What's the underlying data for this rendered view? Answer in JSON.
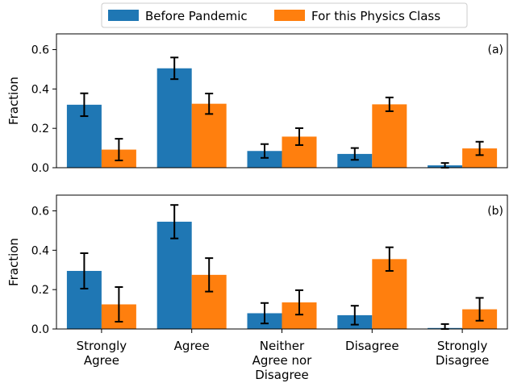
{
  "chart_data": {
    "type": "bar",
    "legend": {
      "placement": "top-center",
      "entries": [
        "Before Pandemic",
        "For this Physics Class"
      ]
    },
    "categories": [
      [
        "Strongly",
        "Agree"
      ],
      [
        "Agree"
      ],
      [
        "Neither",
        "Agree nor",
        "Disagree"
      ],
      [
        "Disagree"
      ],
      [
        "Strongly",
        "Disagree"
      ]
    ],
    "colors": [
      "#1f77b4",
      "#ff7f0e"
    ],
    "panels": [
      {
        "label": "(a)",
        "ylabel": "Fraction",
        "ylim": [
          0,
          0.68
        ],
        "yticks": [
          "0.0",
          "0.2",
          "0.4",
          "0.6"
        ],
        "series": [
          {
            "name": "Before Pandemic",
            "values": [
              0.32,
              0.505,
              0.085,
              0.07,
              0.012
            ],
            "errors": [
              0.058,
              0.055,
              0.035,
              0.03,
              0.012
            ]
          },
          {
            "name": "For this Physics Class",
            "values": [
              0.092,
              0.325,
              0.158,
              0.322,
              0.098
            ],
            "errors": [
              0.055,
              0.052,
              0.043,
              0.035,
              0.034
            ]
          }
        ]
      },
      {
        "label": "(b)",
        "ylabel": "Fraction",
        "ylim": [
          0,
          0.68
        ],
        "yticks": [
          "0.0",
          "0.2",
          "0.4",
          "0.6"
        ],
        "series": [
          {
            "name": "Before Pandemic",
            "values": [
              0.295,
              0.545,
              0.08,
              0.07,
              0.005
            ],
            "errors": [
              0.09,
              0.085,
              0.052,
              0.048,
              0.02
            ]
          },
          {
            "name": "For this Physics Class",
            "values": [
              0.125,
              0.275,
              0.135,
              0.355,
              0.1
            ],
            "errors": [
              0.088,
              0.085,
              0.062,
              0.06,
              0.058
            ]
          }
        ]
      }
    ]
  }
}
